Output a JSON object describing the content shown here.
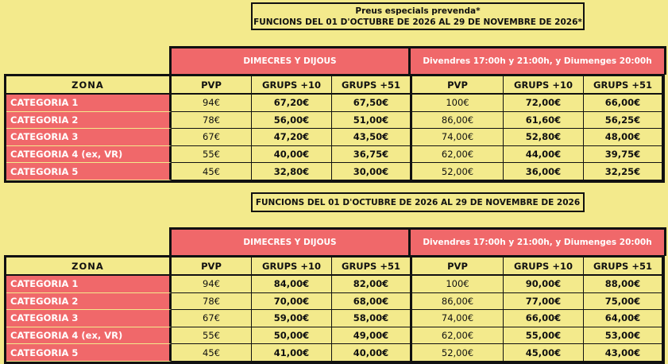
{
  "colors": {
    "background": "#f3ea8c",
    "accent": "#f0686a"
  },
  "tables": [
    {
      "title_lines": [
        "Preus especials prevenda*",
        "FUNCIONS DEL 01 D'OCTUBRE DE 2026 AL 29 DE NOVEMBRE DE 2026*"
      ],
      "group1": "DIMECRES Y DIJOUS",
      "group2": "Divendres 17:00h y 21:00h, y Diumenges 20:00h",
      "headers": [
        "ZONA",
        "PVP",
        "GRUPS +10",
        "GRUPS +51",
        "PVP",
        "GRUPS +10",
        "GRUPS +51"
      ],
      "rows": [
        [
          "CATEGORIA 1",
          "94€",
          "67,20€",
          "67,50€",
          "100€",
          "72,00€",
          "66,00€"
        ],
        [
          "CATEGORIA 2",
          "78€",
          "56,00€",
          "51,00€",
          "86,00€",
          "61,60€",
          "56,25€"
        ],
        [
          "CATEGORIA 3",
          "67€",
          "47,20€",
          "43,50€",
          "74,00€",
          "52,80€",
          "48,00€"
        ],
        [
          "CATEGORIA 4 (ex, VR)",
          "55€",
          "40,00€",
          "36,75€",
          "62,00€",
          "44,00€",
          "39,75€"
        ],
        [
          "CATEGORIA 5",
          "45€",
          "32,80€",
          "30,00€",
          "52,00€",
          "36,00€",
          "32,25€"
        ]
      ]
    },
    {
      "title_lines": [
        "FUNCIONS DEL 01 D'OCTUBRE DE 2026 AL 29 DE NOVEMBRE DE 2026"
      ],
      "group1": "DIMECRES Y DIJOUS",
      "group2": "Divendres 17:00h y 21:00h, y Diumenges 20:00h",
      "headers": [
        "ZONA",
        "PVP",
        "GRUPS +10",
        "GRUPS +51",
        "PVP",
        "GRUPS +10",
        "GRUPS +51"
      ],
      "rows": [
        [
          "CATEGORIA 1",
          "94€",
          "84,00€",
          "82,00€",
          "100€",
          "90,00€",
          "88,00€"
        ],
        [
          "CATEGORIA 2",
          "78€",
          "70,00€",
          "68,00€",
          "86,00€",
          "77,00€",
          "75,00€"
        ],
        [
          "CATEGORIA 3",
          "67€",
          "59,00€",
          "58,00€",
          "74,00€",
          "66,00€",
          "64,00€"
        ],
        [
          "CATEGORIA 4 (ex, VR)",
          "55€",
          "50,00€",
          "49,00€",
          "62,00€",
          "55,00€",
          "53,00€"
        ],
        [
          "CATEGORIA 5",
          "45€",
          "41,00€",
          "40,00€",
          "52,00€",
          "45,00€",
          "43,00€"
        ]
      ]
    }
  ]
}
